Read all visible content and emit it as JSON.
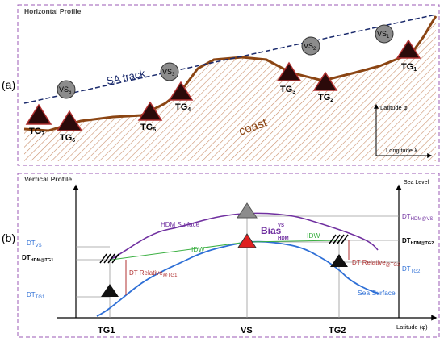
{
  "panel_a": {
    "heading": "Horizontal Profile",
    "tag": "(a)",
    "track_label": "SA track",
    "coast_label": "coast",
    "axis_lat": "Latitude φ",
    "axis_lon": "Longitude λ",
    "vs_labels": {
      "vs6": "VS",
      "vs6_sub": "6",
      "vs3": "VS",
      "vs3_sub": "3",
      "vs2": "VS",
      "vs2_sub": "2",
      "vs1": "VS",
      "vs1_sub": "1"
    },
    "tg_labels": {
      "tg7": "TG",
      "tg7_sub": "7",
      "tg6": "TG",
      "tg6_sub": "6",
      "tg5": "TG",
      "tg5_sub": "5",
      "tg4": "TG",
      "tg4_sub": "4",
      "tg3": "TG",
      "tg3_sub": "3",
      "tg2": "TG",
      "tg2_sub": "2",
      "tg1": "TG",
      "tg1_sub": "1"
    }
  },
  "panel_b": {
    "heading": "Vertical Profile",
    "tag": "(b)",
    "sea_level": "Sea Level",
    "latitude_axis": "Latitude (φ)",
    "hdm_surface": "HDM Surface",
    "sea_surface": "Sea Surface",
    "bias": "Bias",
    "bias_sup": "VS",
    "bias_sub": "HDM",
    "idw": "IDW",
    "dt_rel": "DT Relative",
    "dt_rel_sub1": "@TG1",
    "dt_rel_sub2": "@TG2",
    "dt": "DT",
    "sub_vs": "VS",
    "sub_hdm_tg1": "HDM@TG1",
    "sub_tg1": "TG1",
    "sub_hdm_vs": "HDM@VS",
    "sub_hdm_tg2": "HDM@TG2",
    "sub_tg2": "TG2",
    "x_tg1": "TG1",
    "x_vs": "VS",
    "x_tg2": "TG2"
  },
  "colors": {
    "frame": "#9b59b6",
    "coast": "#8b4513",
    "track": "#1a2a6c",
    "hdm": "#7030a0",
    "sea": "#2e6fd6",
    "idw": "#3cb043",
    "dt_rel": "#b03030",
    "dt_blue": "#2e6fd6",
    "tg_fill": "#2b0a0a",
    "vs_fill": "#8c8c8c"
  }
}
